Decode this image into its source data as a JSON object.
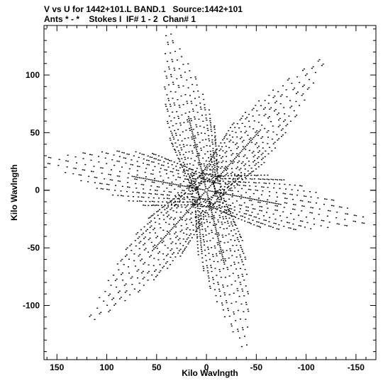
{
  "chart_data": {
    "type": "scatter",
    "title_line1": "V vs U for 1442+101.L BAND.1   Source:1442+101",
    "title_line2": "Ants * - *    Stokes I  IF# 1 - 2  Chan# 1",
    "xlabel": "Kilo Wavlngth",
    "ylabel": "Kilo Wavlngth",
    "xlim": [
      163,
      -170
    ],
    "ylim": [
      -147,
      143
    ],
    "x_reversed": true,
    "xticks": [
      150,
      100,
      50,
      0,
      -50,
      -100,
      -150
    ],
    "yticks": [
      100,
      50,
      0,
      -50,
      -100
    ],
    "xtick_labels": [
      "150",
      "100",
      "50",
      "0",
      "-50",
      "-100",
      "-150"
    ],
    "ytick_labels": [
      "100",
      "50",
      "0",
      "-50",
      "-100"
    ],
    "grid": false,
    "marker_color": "#000000",
    "series": [
      {
        "arms": [
          {
            "from": [
              0,
              0
            ],
            "to": [
              40,
              142
            ]
          },
          {
            "from": [
              0,
              0
            ],
            "to": [
              120,
              -116
            ]
          },
          {
            "from": [
              0,
              0
            ],
            "to": [
              -165,
              -27
            ]
          },
          {
            "from": [
              0,
              0
            ],
            "to": [
              -40,
              -142
            ]
          },
          {
            "from": [
              0,
              0
            ],
            "to": [
              -120,
              116
            ]
          },
          {
            "from": [
              0,
              0
            ],
            "to": [
              165,
              27
            ]
          }
        ],
        "tracks_per_arm": 14,
        "points_per_track": 18
      }
    ]
  }
}
